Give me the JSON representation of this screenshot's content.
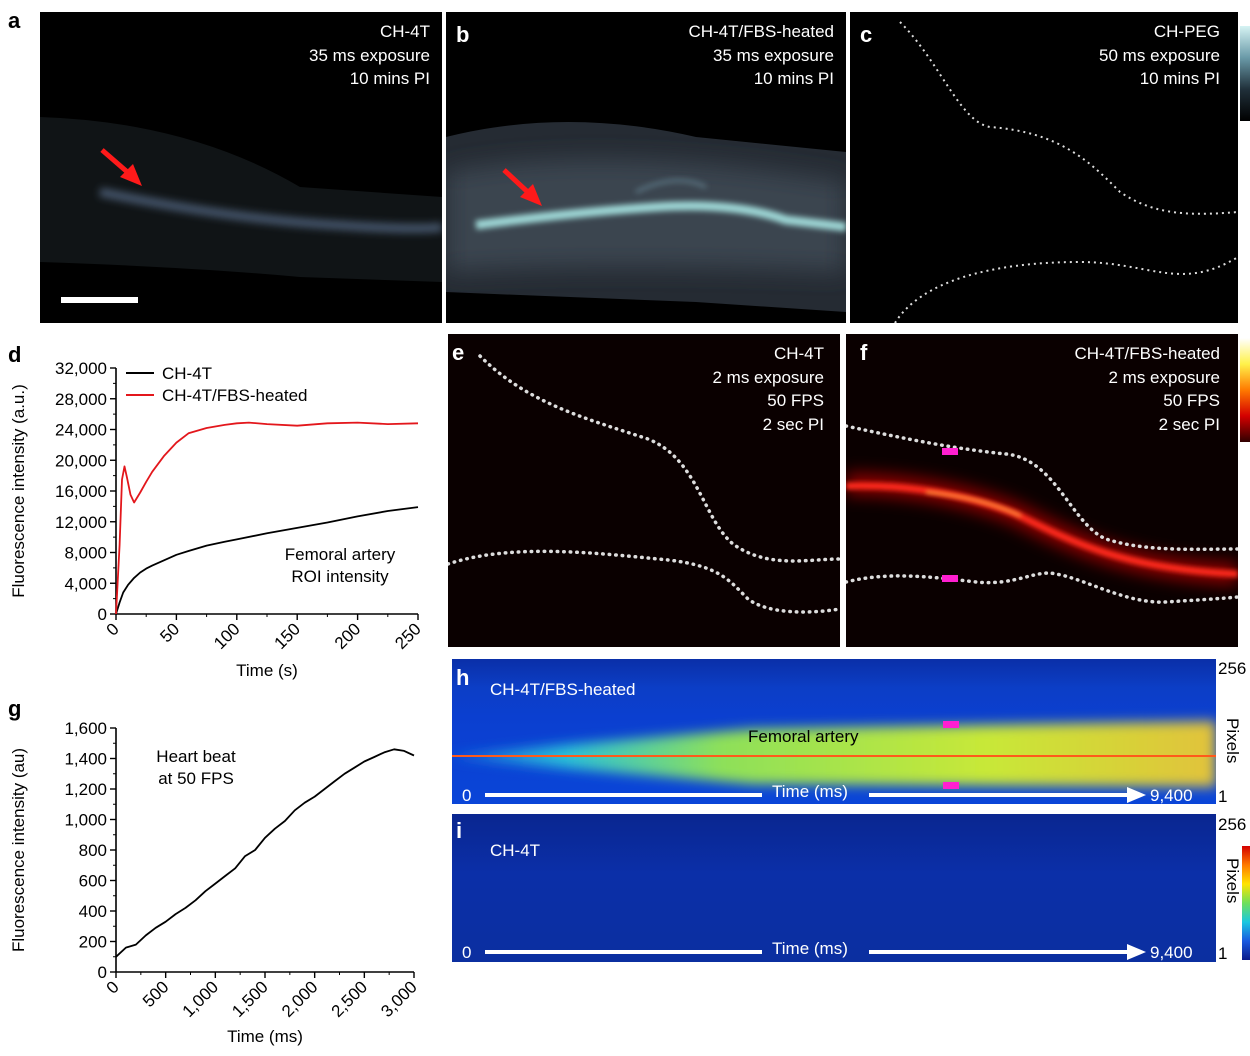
{
  "panels": {
    "a": {
      "letter": "a",
      "lines": [
        "CH-4T",
        "35 ms exposure",
        "10 mins PI"
      ]
    },
    "b": {
      "letter": "b",
      "lines": [
        "CH-4T/FBS-heated",
        "35 ms exposure",
        "10 mins PI"
      ]
    },
    "c": {
      "letter": "c",
      "lines": [
        "CH-PEG",
        "50 ms exposure",
        "10 mins PI"
      ]
    },
    "e": {
      "letter": "e",
      "lines": [
        "CH-4T",
        "2 ms exposure",
        "50 FPS",
        "2 sec PI"
      ]
    },
    "f": {
      "letter": "f",
      "lines": [
        "CH-4T/FBS-heated",
        "2 ms exposure",
        "50 FPS",
        "2 sec PI"
      ]
    },
    "h": {
      "letter": "h",
      "sample": "CH-4T/FBS-heated",
      "vessel": "Femoral artery",
      "time_label": "Time (ms)",
      "t_start": "0",
      "t_end": "9,400",
      "px_top": "256",
      "px_bottom": "1",
      "px_label": "Pixels"
    },
    "i": {
      "letter": "i",
      "sample": "CH-4T",
      "time_label": "Time (ms)",
      "t_start": "0",
      "t_end": "9,400",
      "px_top": "256",
      "px_bottom": "1",
      "px_label": "Pixels"
    }
  },
  "colors": {
    "ch4t_line": "#000000",
    "fbs_line": "#e3171c",
    "arrow": "#ff1a1a",
    "marker": "#ff1fd0"
  },
  "chart_data": [
    {
      "id": "d",
      "letter": "d",
      "type": "line",
      "xlabel": "Time (s)",
      "ylabel": "Fluorescence intensity (a.u.)",
      "xlim": [
        0,
        250
      ],
      "ylim": [
        0,
        32000
      ],
      "xticks": [
        0,
        50,
        100,
        150,
        200,
        250
      ],
      "yticks": [
        0,
        4000,
        8000,
        12000,
        16000,
        20000,
        24000,
        28000,
        32000
      ],
      "xtick_labels": [
        "0",
        "50",
        "100",
        "150",
        "200",
        "250"
      ],
      "ytick_labels": [
        "0",
        "4,000",
        "8,000",
        "12,000",
        "16,000",
        "20,000",
        "24,000",
        "28,000",
        "32,000"
      ],
      "legend_position": "top-left",
      "annotation": [
        "Femoral artery",
        "ROI intensity"
      ],
      "series": [
        {
          "name": "CH-4T",
          "color": "#000000",
          "x": [
            0,
            3,
            6,
            10,
            15,
            20,
            25,
            30,
            40,
            50,
            60,
            75,
            90,
            100,
            125,
            150,
            175,
            200,
            225,
            250
          ],
          "y": [
            0,
            1500,
            2800,
            3800,
            4700,
            5400,
            5900,
            6300,
            7000,
            7700,
            8200,
            8900,
            9400,
            9700,
            10500,
            11200,
            11900,
            12700,
            13400,
            13900
          ]
        },
        {
          "name": "CH-4T/FBS-heated",
          "color": "#e3171c",
          "x": [
            0,
            3,
            5,
            7,
            9,
            12,
            15,
            20,
            25,
            30,
            40,
            50,
            60,
            75,
            90,
            100,
            110,
            125,
            150,
            175,
            200,
            225,
            250
          ],
          "y": [
            0,
            9000,
            17500,
            19200,
            17800,
            15500,
            14500,
            15800,
            17200,
            18500,
            20600,
            22300,
            23500,
            24200,
            24600,
            24800,
            24900,
            24700,
            24500,
            24800,
            24900,
            24700,
            24800
          ]
        }
      ]
    },
    {
      "id": "g",
      "letter": "g",
      "type": "line",
      "xlabel": "Time (ms)",
      "ylabel": "Fluorescence intensity (au)",
      "xlim": [
        0,
        3000
      ],
      "ylim": [
        0,
        1600
      ],
      "xticks": [
        0,
        500,
        1000,
        1500,
        2000,
        2500,
        3000
      ],
      "yticks": [
        0,
        200,
        400,
        600,
        800,
        1000,
        1200,
        1400,
        1600
      ],
      "xtick_labels": [
        "0",
        "500",
        "1,000",
        "1,500",
        "2,000",
        "2,500",
        "3,000"
      ],
      "ytick_labels": [
        "0",
        "200",
        "400",
        "600",
        "800",
        "1,000",
        "1,200",
        "1,400",
        "1,600"
      ],
      "annotation": [
        "Heart beat",
        "at 50 FPS"
      ],
      "series": [
        {
          "name": "",
          "color": "#000000",
          "x": [
            0,
            100,
            200,
            300,
            400,
            500,
            600,
            700,
            800,
            900,
            1000,
            1100,
            1200,
            1300,
            1400,
            1500,
            1600,
            1700,
            1800,
            1900,
            2000,
            2100,
            2200,
            2300,
            2400,
            2500,
            2600,
            2700,
            2800,
            2900,
            3000
          ],
          "y": [
            100,
            160,
            180,
            240,
            290,
            330,
            380,
            420,
            470,
            530,
            580,
            630,
            680,
            760,
            800,
            880,
            940,
            990,
            1060,
            1110,
            1150,
            1200,
            1250,
            1300,
            1340,
            1380,
            1410,
            1440,
            1460,
            1450,
            1420
          ]
        }
      ]
    }
  ]
}
